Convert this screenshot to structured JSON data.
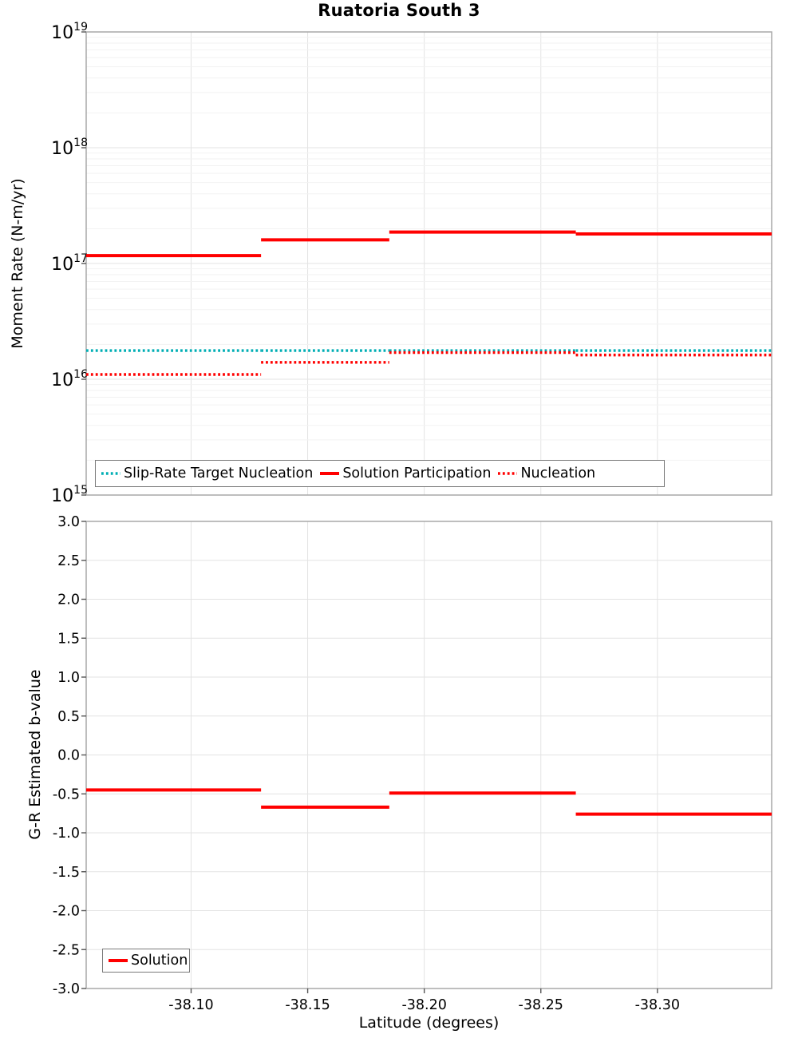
{
  "title": "Ruatoria South 3",
  "colors": {
    "red": "#FF0000",
    "teal": "#00AEB4",
    "grid_major": "#E3E3E3",
    "grid_minor": "#F2F2F2",
    "plot_border": "#A8A8A8",
    "legend_border": "#7A7A7A",
    "text": "#000000"
  },
  "chart_data": [
    {
      "type": "line",
      "subtype": "step",
      "panel": "top",
      "title": "Ruatoria South 3",
      "ylabel": "Moment Rate (N-m/yr)",
      "yscale": "log10",
      "ylim": [
        1000000000000000.0,
        1e+19
      ],
      "ytick_exponents": [
        15,
        16,
        17,
        18,
        19
      ],
      "xlim": [
        -38.055,
        -38.349
      ],
      "grid": true,
      "legend_position": "bottom-left-inside",
      "x_boundaries": [
        -38.055,
        -38.13,
        -38.185,
        -38.265,
        -38.349
      ],
      "series": [
        {
          "name": "Slip-Rate Target Nucleation",
          "color_key": "teal",
          "style": "dotted",
          "values": [
            1.77e+16,
            1.77e+16,
            1.77e+16,
            1.77e+16
          ]
        },
        {
          "name": "Solution Participation",
          "color_key": "red",
          "style": "solid",
          "values": [
            1.17e+17,
            1.6e+17,
            1.87e+17,
            1.8e+17
          ]
        },
        {
          "name": "Nucleation",
          "color_key": "red",
          "style": "dotted",
          "values": [
            1.1e+16,
            1.4e+16,
            1.7e+16,
            1.62e+16
          ]
        }
      ]
    },
    {
      "type": "line",
      "subtype": "step",
      "panel": "bottom",
      "ylabel": "G-R Estimated b-value",
      "xlabel": "Latitude (degrees)",
      "yscale": "linear",
      "ylim": [
        -3.0,
        3.0
      ],
      "ytick_step": 0.5,
      "ytick_labels": [
        "3.0",
        "2.5",
        "2.0",
        "1.5",
        "1.0",
        "0.5",
        "0.0",
        "-0.5",
        "-1.0",
        "-1.5",
        "-2.0",
        "-2.5",
        "-3.0"
      ],
      "xlim": [
        -38.055,
        -38.349
      ],
      "xticks": [
        -38.1,
        -38.15,
        -38.2,
        -38.25,
        -38.3
      ],
      "xtick_labels": [
        "-38.10",
        "-38.15",
        "-38.20",
        "-38.25",
        "-38.30"
      ],
      "grid": true,
      "legend_position": "bottom-left-inside",
      "x_boundaries": [
        -38.055,
        -38.13,
        -38.185,
        -38.265,
        -38.349
      ],
      "series": [
        {
          "name": "Solution",
          "color_key": "red",
          "style": "solid",
          "values": [
            -0.45,
            -0.67,
            -0.49,
            -0.76
          ]
        }
      ]
    }
  ]
}
